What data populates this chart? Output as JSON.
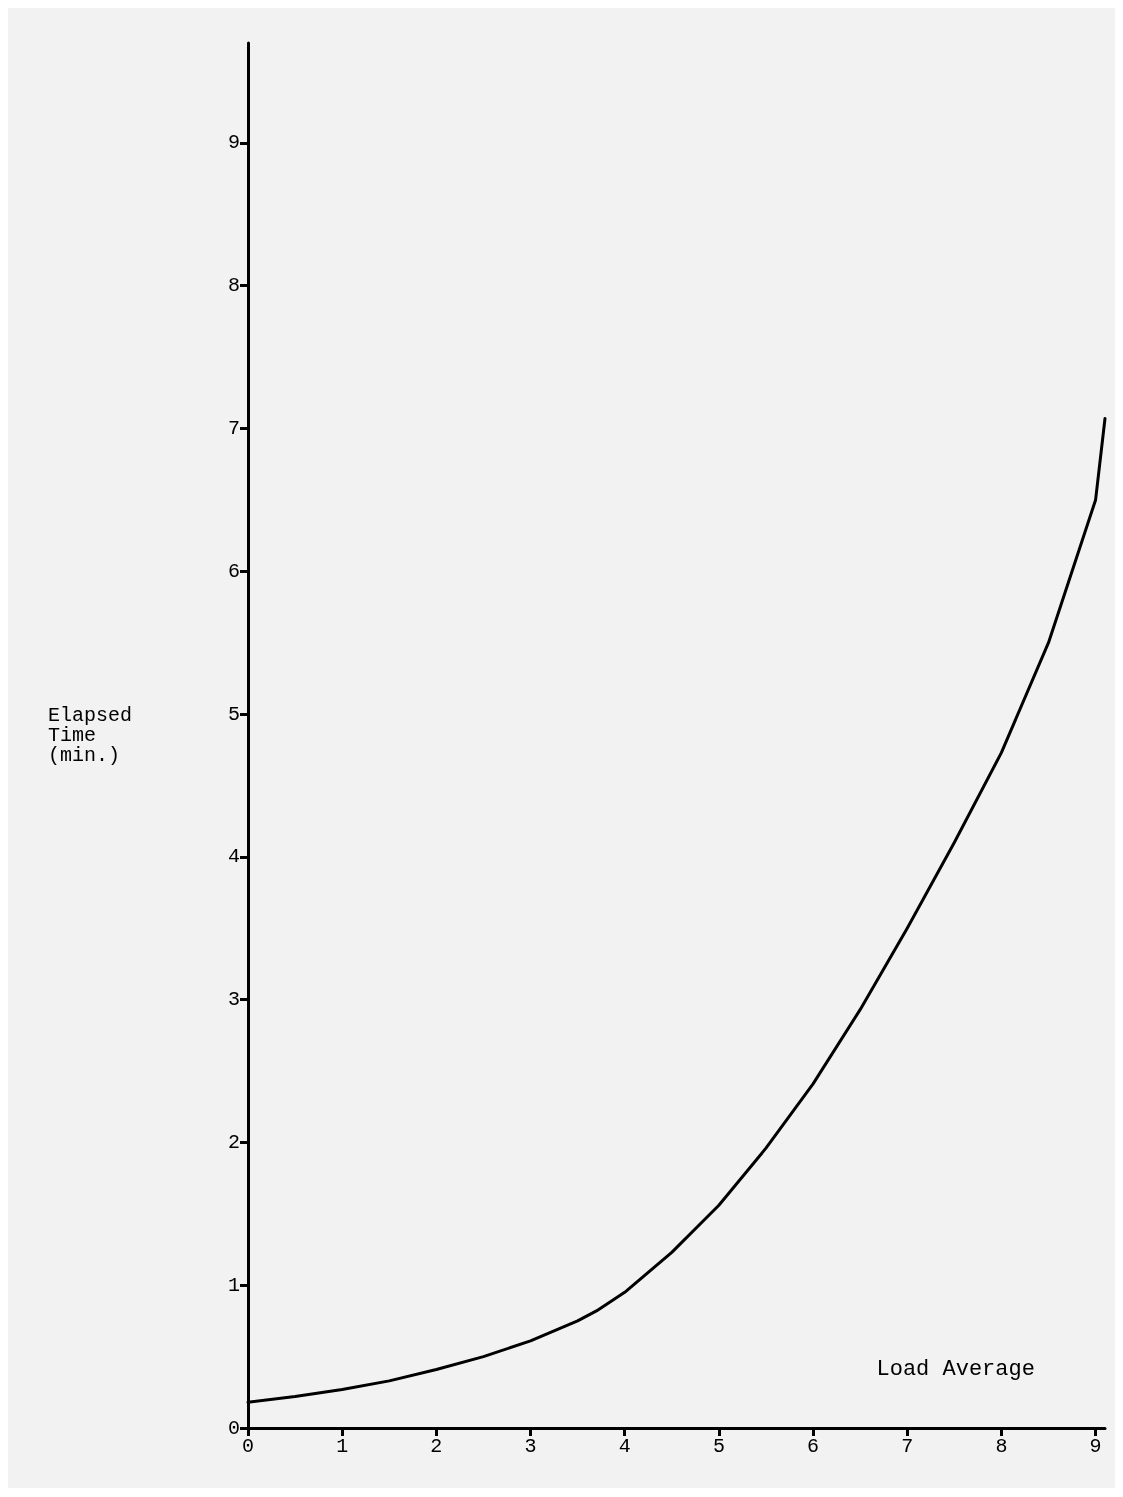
{
  "chart_data": {
    "type": "line",
    "xlabel": "Load Average",
    "ylabel": "Elapsed\nTime\n(min.)",
    "x": [
      0,
      0.5,
      1,
      1.5,
      2,
      2.5,
      3,
      3.5,
      3.7,
      4,
      4.5,
      5,
      5.5,
      6,
      6.5,
      7,
      7.5,
      8,
      8.5,
      9,
      9.1
    ],
    "series": [
      {
        "color": "#000000",
        "values": [
          0.18,
          0.22,
          0.27,
          0.33,
          0.41,
          0.5,
          0.61,
          0.75,
          0.82,
          0.95,
          1.23,
          1.56,
          1.96,
          2.41,
          2.93,
          3.5,
          4.1,
          4.73,
          5.5,
          6.5,
          7.07
        ]
      }
    ],
    "xlim": [
      0,
      9.1
    ],
    "xticks": [
      0,
      1,
      2,
      3,
      4,
      5,
      6,
      7,
      8,
      9
    ],
    "ylim": [
      0,
      9.7
    ],
    "yticks": [
      0,
      1,
      2,
      3,
      4,
      5,
      6,
      7,
      8,
      9
    ],
    "grid": false,
    "marker": "none",
    "line_style": "solid"
  }
}
